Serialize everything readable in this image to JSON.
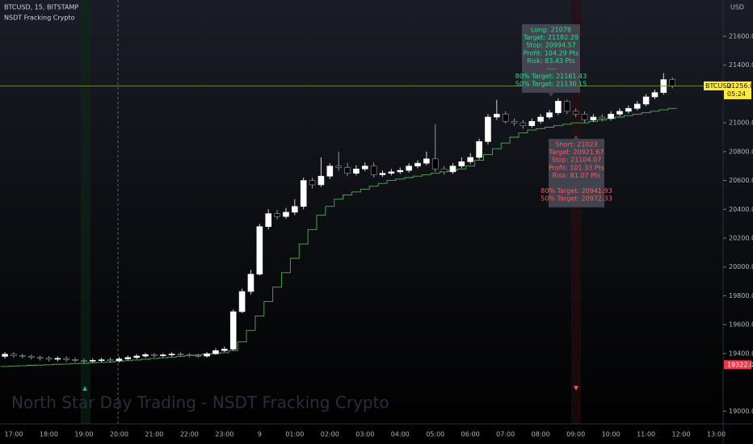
{
  "chart_data": {
    "type": "candlestick",
    "symbol_line": "BTCUSD, 15, BITSTAMP",
    "indicator": "NSDT Fracking Crypto",
    "currency": "USD",
    "watermark": "North Star Day Trading - NSDT Fracking Crypto",
    "up_color": "#ffffff",
    "down_color": "#000000",
    "categories": [
      null,
      "17:00",
      null,
      null,
      null,
      "18:00",
      null,
      null,
      null,
      "19:00",
      null,
      null,
      null,
      "20:00",
      null,
      null,
      null,
      "21:00",
      null,
      null,
      null,
      "22:00",
      null,
      null,
      null,
      "23:00",
      null,
      null,
      null,
      "9",
      null,
      null,
      null,
      "01:00",
      null,
      null,
      null,
      "02:00",
      null,
      null,
      null,
      "03:00",
      null,
      null,
      null,
      "04:00",
      null,
      null,
      null,
      "05:00",
      null,
      null,
      null,
      "06:00",
      null,
      null,
      null,
      "07:00",
      null,
      null,
      null,
      "08:00",
      null,
      null,
      null,
      "09:00",
      null,
      null,
      null,
      "10:00",
      null,
      null,
      null,
      "11:00",
      null,
      null,
      null,
      "12:00",
      null,
      null,
      null,
      "13:00"
    ],
    "open": [
      19380,
      19395,
      19385,
      19380,
      19372,
      19368,
      19360,
      19366,
      19358,
      19352,
      19347,
      19352,
      19356,
      19350,
      19362,
      19372,
      19382,
      19392,
      19386,
      19390,
      19396,
      19390,
      19386,
      19382,
      19398,
      19420,
      19430,
      19690,
      19830,
      19950,
      20280,
      20370,
      20350,
      20380,
      20420,
      20600,
      20570,
      20630,
      20700,
      20690,
      20650,
      20680,
      20700,
      20640,
      20650,
      20660,
      20670,
      20700,
      20720,
      20750,
      20680,
      20660,
      20700,
      20730,
      20760,
      20870,
      21040,
      21060,
      21010,
      21000,
      20980,
      21010,
      21040,
      21070,
      21150,
      21080,
      21060,
      21020,
      21040,
      21030,
      21060,
      21080,
      21100,
      21130,
      21180,
      21210,
      21300,
      null,
      null,
      null,
      null,
      null
    ],
    "high": [
      19410,
      19410,
      19398,
      19392,
      19385,
      19382,
      19380,
      19380,
      19372,
      19365,
      19366,
      19370,
      19372,
      19378,
      19386,
      19396,
      19405,
      19404,
      19402,
      19408,
      19408,
      19402,
      19398,
      19410,
      19436,
      19448,
      19705,
      19850,
      19980,
      20300,
      20400,
      20395,
      20410,
      20470,
      20620,
      20620,
      20760,
      20720,
      20800,
      20720,
      20705,
      20725,
      20725,
      20670,
      20680,
      20690,
      20720,
      20740,
      20800,
      20990,
      20700,
      20720,
      20760,
      20790,
      20890,
      21060,
      21160,
      21080,
      21030,
      21020,
      21030,
      21060,
      21090,
      21170,
      21160,
      21100,
      21080,
      21060,
      21060,
      21080,
      21100,
      21120,
      21150,
      21200,
      21230,
      21345,
      21315,
      null,
      null,
      null,
      null,
      null
    ],
    "low": [
      19365,
      19370,
      19366,
      19358,
      19352,
      19345,
      19346,
      19342,
      19338,
      19330,
      19334,
      19338,
      19336,
      19338,
      19350,
      19360,
      19370,
      19372,
      19374,
      19378,
      19378,
      19374,
      19370,
      19372,
      19390,
      19410,
      19420,
      19680,
      19810,
      19940,
      20260,
      20330,
      20335,
      20360,
      20400,
      20545,
      20555,
      20610,
      20670,
      20630,
      20635,
      20665,
      20620,
      20625,
      20635,
      20645,
      20655,
      20685,
      20705,
      20660,
      20640,
      20645,
      20685,
      20715,
      20745,
      20850,
      21020,
      20995,
      20980,
      20960,
      20965,
      20995,
      21025,
      21055,
      21060,
      21040,
      21000,
      21005,
      21010,
      21015,
      21045,
      21065,
      21085,
      21115,
      21165,
      21195,
      21240,
      null,
      null,
      null,
      null,
      null
    ],
    "close": [
      19395,
      19385,
      19380,
      19372,
      19368,
      19360,
      19366,
      19358,
      19352,
      19347,
      19352,
      19356,
      19350,
      19362,
      19372,
      19382,
      19392,
      19386,
      19390,
      19396,
      19390,
      19386,
      19382,
      19398,
      19420,
      19430,
      19690,
      19830,
      19950,
      20280,
      20370,
      20350,
      20380,
      20420,
      20600,
      20570,
      20630,
      20700,
      20690,
      20650,
      20680,
      20700,
      20640,
      20650,
      20660,
      20670,
      20700,
      20720,
      20750,
      20680,
      20660,
      20700,
      20730,
      20760,
      20870,
      21040,
      21060,
      21010,
      21000,
      20980,
      21010,
      21040,
      21070,
      21150,
      21080,
      21060,
      21020,
      21040,
      21030,
      21060,
      21080,
      21100,
      21130,
      21180,
      21210,
      21300,
      21256,
      null,
      null,
      null,
      null,
      null
    ],
    "trail": {
      "color": "#4caf50",
      "values": [
        19310,
        19312,
        19315,
        19318,
        19320,
        19322,
        19325,
        19327,
        19330,
        19332,
        19335,
        19338,
        19340,
        19345,
        19350,
        19355,
        19360,
        19365,
        19370,
        19375,
        19380,
        19385,
        19390,
        19395,
        19400,
        19405,
        19420,
        19480,
        19560,
        19660,
        19760,
        19860,
        19960,
        20060,
        20160,
        20260,
        20360,
        20420,
        20470,
        20500,
        20520,
        20540,
        20560,
        20580,
        20600,
        20610,
        20620,
        20630,
        20640,
        20650,
        20660,
        20670,
        20680,
        20700,
        20740,
        20780,
        20820,
        20860,
        20900,
        20930,
        20950,
        20960,
        20970,
        20980,
        20990,
        21000,
        21000,
        21010,
        21020,
        21030,
        21040,
        21050,
        21060,
        21070,
        21080,
        21090,
        21100,
        null,
        null,
        null,
        null,
        null
      ]
    },
    "ylim": [
      18912,
      21852
    ],
    "yticks": [
      {
        "value": 19000,
        "label": "19000.00"
      },
      {
        "value": 19400,
        "label": "19400.00"
      },
      {
        "value": 19600,
        "label": "19600.00"
      },
      {
        "value": 19800,
        "label": "19800.00"
      },
      {
        "value": 20000,
        "label": "20000.00"
      },
      {
        "value": 20200,
        "label": "20200.00"
      },
      {
        "value": 20400,
        "label": "20400.00"
      },
      {
        "value": 20600,
        "label": "20600.00"
      },
      {
        "value": 20800,
        "label": "20800.00"
      },
      {
        "value": 21000,
        "label": "21000.00"
      },
      {
        "value": 21400,
        "label": "21400.00"
      },
      {
        "value": 21600,
        "label": "21600.00"
      }
    ],
    "price_tags": [
      {
        "value": 21256,
        "label": "21256.00",
        "symbol": "BTCUSD",
        "countdown": "05:24",
        "color": "#ffeb3b"
      },
      {
        "value": 19322,
        "label": "19322.00",
        "color": "#f23645"
      }
    ],
    "long_box": {
      "color": "#26e07f",
      "lines": [
        "Long: 21078",
        "Target: 21182.29",
        "Stop: 20994.57",
        "Profit: 104.29 Pts",
        "Risk: 83.43 Pts",
        "----",
        "80% Target: 21161.43",
        "50% Target: 21130.15"
      ]
    },
    "short_box": {
      "color": "#ff5b5b",
      "lines": [
        "Short: 21023",
        "Target: 20921.67",
        "Stop: 21104.07",
        "Profit: 101.33 Pts",
        "Risk: 81.07 Pts",
        "80% Target: 20941.93",
        "50% Target: 20972.33"
      ]
    }
  }
}
